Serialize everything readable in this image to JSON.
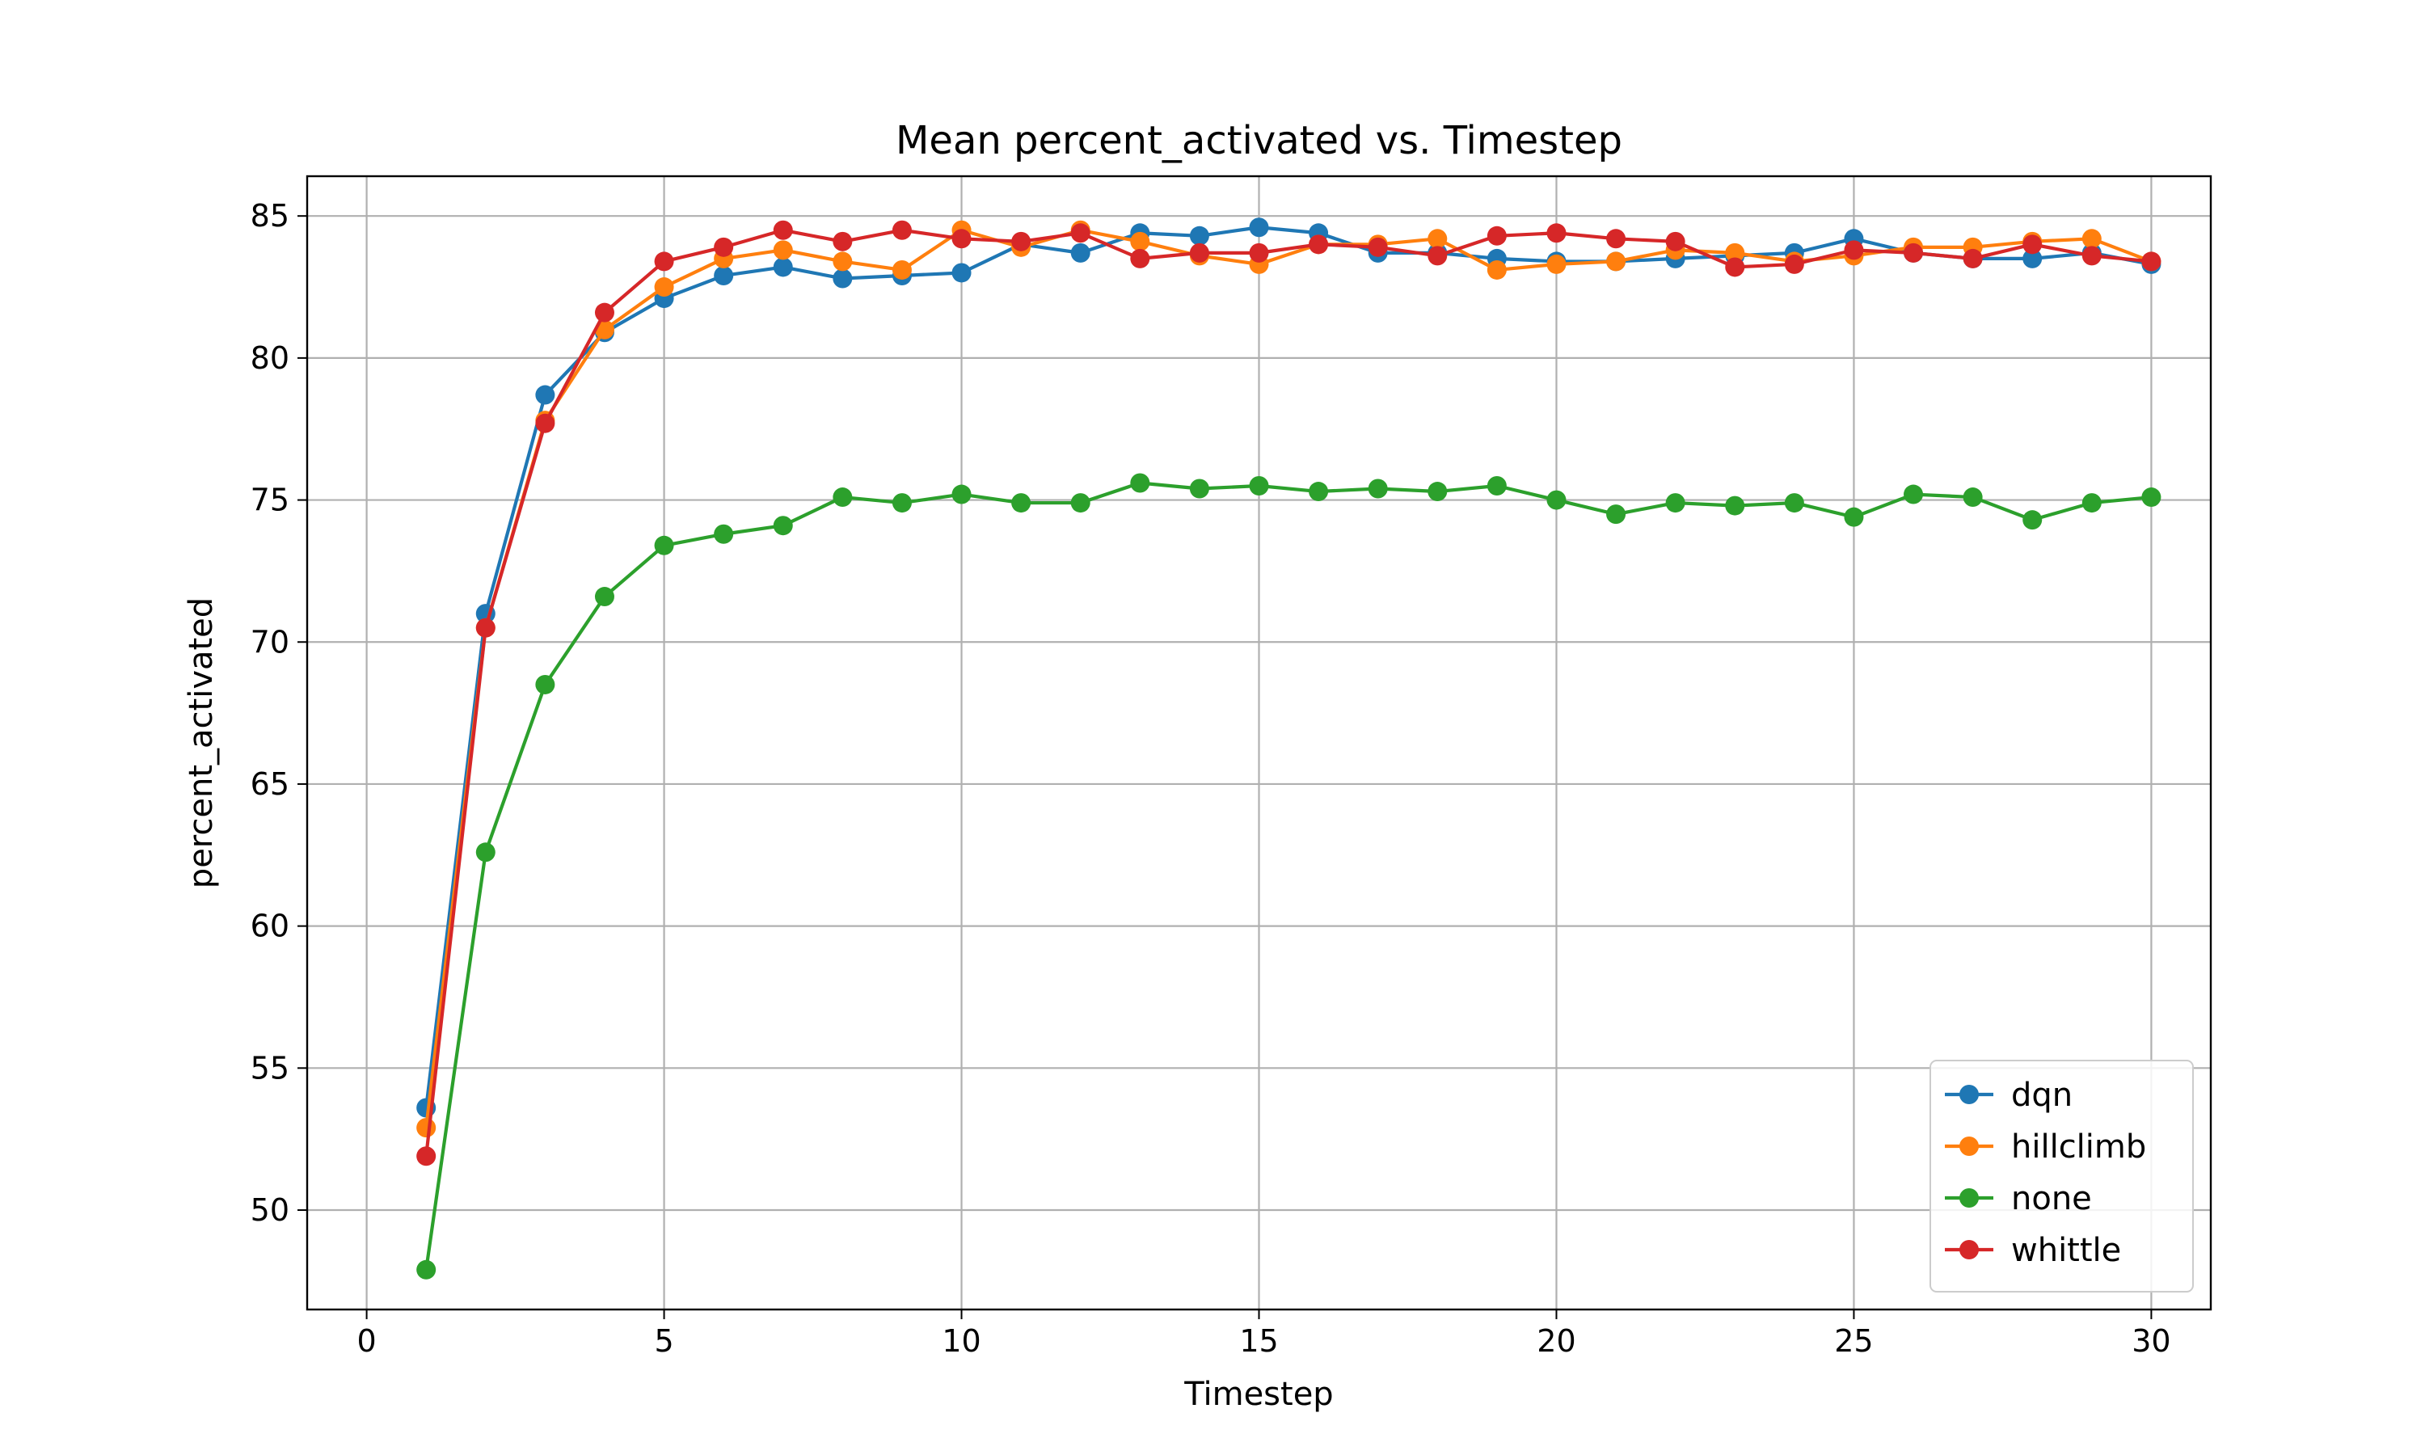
{
  "chart_data": {
    "type": "line",
    "title": "Mean percent_activated vs. Timestep",
    "xlabel": "Timestep",
    "ylabel": "percent_activated",
    "xlim": [
      -1,
      31
    ],
    "ylim": [
      46.5,
      86.4
    ],
    "xticks": [
      0,
      5,
      10,
      15,
      20,
      25,
      30
    ],
    "yticks": [
      50,
      55,
      60,
      65,
      70,
      75,
      80,
      85
    ],
    "grid": true,
    "legend_position": "bottom-right",
    "x": [
      1,
      2,
      3,
      4,
      5,
      6,
      7,
      8,
      9,
      10,
      11,
      12,
      13,
      14,
      15,
      16,
      17,
      18,
      19,
      20,
      21,
      22,
      23,
      24,
      25,
      26,
      27,
      28,
      29,
      30
    ],
    "series": [
      {
        "name": "dqn",
        "color": "#1f77b4",
        "values": [
          53.6,
          71.0,
          78.7,
          80.9,
          82.1,
          82.9,
          83.2,
          82.8,
          82.9,
          83.0,
          84.0,
          83.7,
          84.4,
          84.3,
          84.6,
          84.4,
          83.7,
          83.7,
          83.5,
          83.4,
          83.4,
          83.5,
          83.6,
          83.7,
          84.2,
          83.7,
          83.5,
          83.5,
          83.7,
          83.3
        ]
      },
      {
        "name": "hillclimb",
        "color": "#ff7f0e",
        "values": [
          52.9,
          70.5,
          77.8,
          81.0,
          82.5,
          83.5,
          83.8,
          83.4,
          83.1,
          84.5,
          83.9,
          84.5,
          84.1,
          83.6,
          83.3,
          84.0,
          84.0,
          84.2,
          83.1,
          83.3,
          83.4,
          83.8,
          83.7,
          83.4,
          83.6,
          83.9,
          83.9,
          84.1,
          84.2,
          83.4
        ]
      },
      {
        "name": "none",
        "color": "#2ca02c",
        "values": [
          47.9,
          62.6,
          68.5,
          71.6,
          73.4,
          73.8,
          74.1,
          75.1,
          74.9,
          75.2,
          74.9,
          74.9,
          75.6,
          75.4,
          75.5,
          75.3,
          75.4,
          75.3,
          75.5,
          75.0,
          74.5,
          74.9,
          74.8,
          74.9,
          74.4,
          75.2,
          75.1,
          74.3,
          74.9,
          75.1
        ]
      },
      {
        "name": "whittle",
        "color": "#d62728",
        "values": [
          51.9,
          70.5,
          77.7,
          81.6,
          83.4,
          83.9,
          84.5,
          84.1,
          84.5,
          84.2,
          84.1,
          84.4,
          83.5,
          83.7,
          83.7,
          84.0,
          83.9,
          83.6,
          84.3,
          84.4,
          84.2,
          84.1,
          83.2,
          83.3,
          83.8,
          83.7,
          83.5,
          84.0,
          83.6,
          83.4
        ]
      }
    ]
  }
}
